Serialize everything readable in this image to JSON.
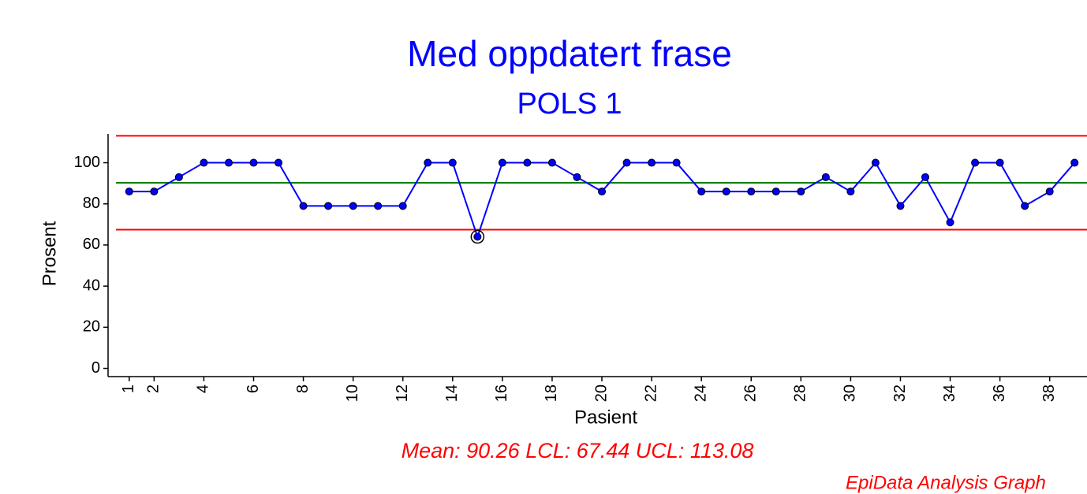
{
  "chart_data": {
    "type": "line",
    "title": "Med oppdatert frase",
    "subtitle": "POLS 1",
    "xlabel": "Pasient",
    "ylabel": "Prosent",
    "annotation": "Mean: 90.26 LCL: 67.44 UCL: 113.08",
    "footer": "EpiData Analysis Graph",
    "x": [
      1,
      2,
      3,
      4,
      5,
      6,
      7,
      8,
      9,
      10,
      11,
      12,
      13,
      14,
      15,
      16,
      17,
      18,
      19,
      20,
      21,
      22,
      23,
      24,
      25,
      26,
      27,
      28,
      29,
      30,
      31,
      32,
      33,
      34,
      35,
      36,
      37,
      38,
      39
    ],
    "series": [
      {
        "name": "Prosent",
        "color": "#0000ff",
        "values": [
          86,
          86,
          93,
          100,
          100,
          100,
          100,
          79,
          79,
          79,
          79,
          79,
          100,
          100,
          64,
          100,
          100,
          100,
          93,
          86,
          100,
          100,
          100,
          86,
          86,
          86,
          86,
          86,
          93,
          86,
          100,
          79,
          93,
          71,
          100,
          100,
          79,
          86,
          100
        ]
      }
    ],
    "mean": 90.26,
    "lcl": 67.44,
    "ucl": 113.08,
    "mean_color": "#008000",
    "limit_color": "#ff0000",
    "outliers": [
      15
    ],
    "xlim": [
      0.15,
      39.5
    ],
    "xticks": [
      1,
      2,
      4,
      6,
      8,
      10,
      12,
      14,
      16,
      18,
      20,
      22,
      24,
      26,
      28,
      30,
      32,
      34,
      36,
      38
    ],
    "ylim": [
      -4,
      114
    ],
    "yticks": [
      0,
      20,
      40,
      60,
      80,
      100
    ]
  }
}
